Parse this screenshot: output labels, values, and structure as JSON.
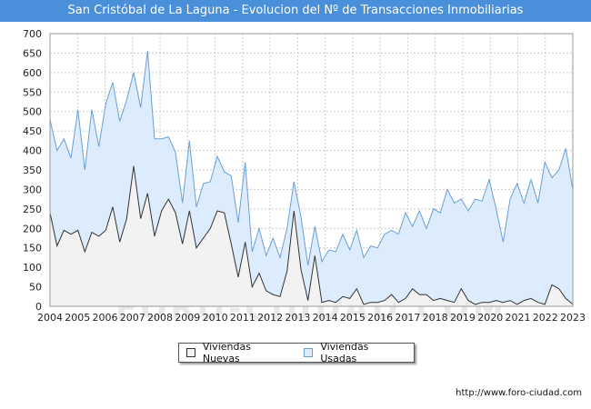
{
  "title": "San Cristóbal de La Laguna - Evolucion del Nº de Transacciones Inmobiliarias",
  "source": "http://www.foro-ciudad.com",
  "watermark": "FORO-CIUDAD.COM",
  "colors": {
    "title_bg": "#4a8fd9",
    "nuevas_fill": "#f2f2f2",
    "nuevas_line": "#333333",
    "usadas_fill": "#dcecfc",
    "usadas_line": "#6a9fd6",
    "grid": "#cccccc"
  },
  "chart_data": {
    "type": "area",
    "title": "San Cristóbal de La Laguna - Evolucion del Nº de Transacciones Inmobiliarias",
    "xlabel": "",
    "ylabel": "",
    "x_ticks": [
      "2004",
      "2005",
      "2006",
      "2007",
      "2008",
      "2009",
      "2010",
      "2011",
      "2012",
      "2013",
      "2014",
      "2015",
      "2016",
      "2017",
      "2018",
      "2019",
      "2020",
      "2021",
      "2022",
      "2023"
    ],
    "ylim": [
      0,
      700
    ],
    "y_ticks": [
      0,
      50,
      100,
      150,
      200,
      250,
      300,
      350,
      400,
      450,
      500,
      550,
      600,
      650,
      700
    ],
    "grid": true,
    "legend_position": "bottom-center",
    "series": [
      {
        "name": "Viviendas Nuevas",
        "values": [
          240,
          155,
          195,
          185,
          195,
          140,
          190,
          180,
          195,
          255,
          165,
          225,
          360,
          225,
          290,
          180,
          245,
          275,
          240,
          160,
          245,
          150,
          175,
          200,
          245,
          240,
          160,
          75,
          165,
          50,
          85,
          40,
          30,
          25,
          90,
          245,
          95,
          15,
          130,
          10,
          15,
          10,
          25,
          20,
          45,
          5,
          10,
          10,
          15,
          30,
          10,
          20,
          45,
          30,
          30,
          15,
          20,
          15,
          10,
          45,
          15,
          5,
          10,
          10,
          15,
          10,
          15,
          5,
          15,
          20,
          10,
          5,
          55,
          45,
          20,
          5
        ]
      },
      {
        "name": "Viviendas Usadas",
        "values": [
          480,
          400,
          430,
          380,
          505,
          350,
          505,
          410,
          520,
          575,
          475,
          530,
          600,
          510,
          655,
          430,
          430,
          435,
          395,
          265,
          425,
          255,
          315,
          320,
          385,
          345,
          335,
          215,
          370,
          140,
          200,
          130,
          175,
          125,
          200,
          320,
          230,
          105,
          205,
          115,
          145,
          140,
          185,
          145,
          195,
          125,
          155,
          150,
          185,
          195,
          185,
          240,
          205,
          245,
          200,
          250,
          240,
          300,
          265,
          275,
          245,
          275,
          270,
          325,
          250,
          165,
          275,
          315,
          265,
          325,
          265,
          370,
          330,
          350,
          405,
          300
        ]
      }
    ]
  }
}
